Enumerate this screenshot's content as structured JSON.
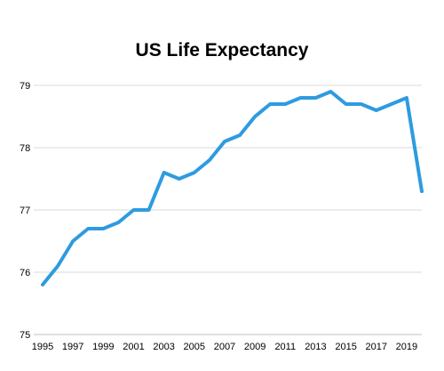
{
  "chart_data": {
    "type": "line",
    "title": "US Life Expectancy",
    "xlabel": "",
    "ylabel": "",
    "x": [
      1995,
      1996,
      1997,
      1998,
      1999,
      2000,
      2001,
      2002,
      2003,
      2004,
      2005,
      2006,
      2007,
      2008,
      2009,
      2010,
      2011,
      2012,
      2013,
      2014,
      2015,
      2016,
      2017,
      2018,
      2019,
      2020
    ],
    "x_tick_labels": [
      "1995",
      "1997",
      "1999",
      "2001",
      "2003",
      "2005",
      "2007",
      "2009",
      "2011",
      "2013",
      "2015",
      "2017",
      "2019"
    ],
    "y_tick_labels": [
      "75",
      "76",
      "77",
      "78",
      "79"
    ],
    "xlim": [
      1995,
      2020
    ],
    "ylim": [
      75,
      79
    ],
    "grid": true,
    "legend": "none",
    "series": [
      {
        "color": "#2e9be0",
        "values": [
          75.8,
          76.1,
          76.5,
          76.7,
          76.7,
          76.8,
          77.0,
          77.0,
          77.6,
          77.5,
          77.6,
          77.8,
          78.1,
          78.2,
          78.5,
          78.7,
          78.7,
          78.8,
          78.8,
          78.9,
          78.7,
          78.7,
          78.6,
          78.7,
          78.8,
          77.3
        ]
      }
    ]
  }
}
